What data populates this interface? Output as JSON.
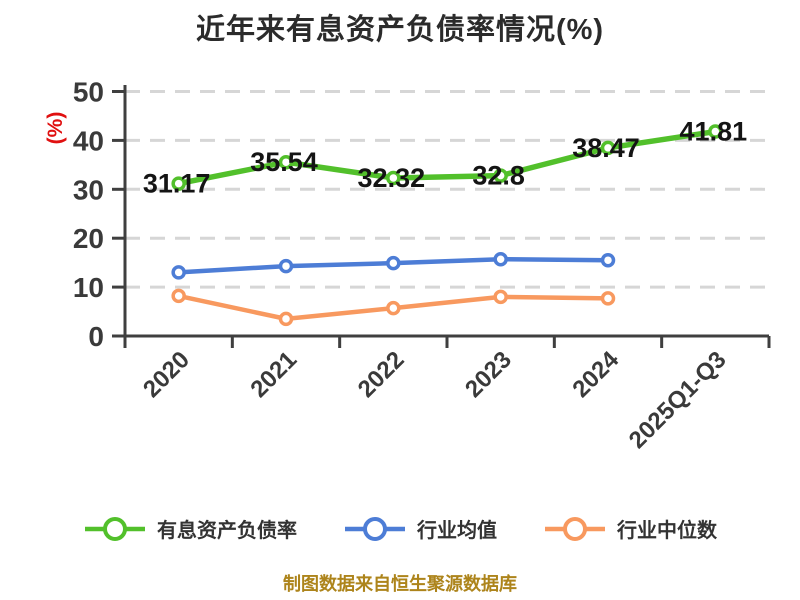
{
  "chart_data": {
    "type": "line",
    "title": "近年来有息资产负债率情况(%)",
    "title_color": "#2b2b2b",
    "ylabel": "(%)",
    "ylabel_color": "#e01010",
    "categories": [
      "2020",
      "2021",
      "2022",
      "2023",
      "2024",
      "2025Q1-Q3"
    ],
    "yticks": [
      0,
      10,
      20,
      30,
      40,
      50
    ],
    "ylim": [
      0,
      50
    ],
    "grid": "horizontal-dashed",
    "gridline_color": "#d6d6d6",
    "axis_color": "#3f3f3f",
    "tick_label_color": "#3a3a3a",
    "data_label_color": "#141414",
    "legend_position": "bottom",
    "series": [
      {
        "name": "有息资产负债率",
        "color": "#52c02b",
        "marker": "circle-white-fill",
        "values": [
          31.17,
          35.54,
          32.32,
          32.8,
          38.47,
          41.81
        ],
        "data_labels": [
          "31.17",
          "35.54",
          "32.32",
          "32.8",
          "38.47",
          "41.81"
        ]
      },
      {
        "name": "行业均值",
        "color": "#4d7dd6",
        "marker": "circle-white-fill",
        "values": [
          13,
          14.3,
          14.9,
          15.7,
          15.5
        ],
        "data_labels": []
      },
      {
        "name": "行业中位数",
        "color": "#f8995f",
        "marker": "circle-white-fill",
        "values": [
          8.2,
          3.5,
          5.7,
          8,
          7.7
        ],
        "data_labels": []
      }
    ]
  },
  "footer_note": "制图数据来自恒生聚源数据库",
  "footer_color": "#ad841b"
}
